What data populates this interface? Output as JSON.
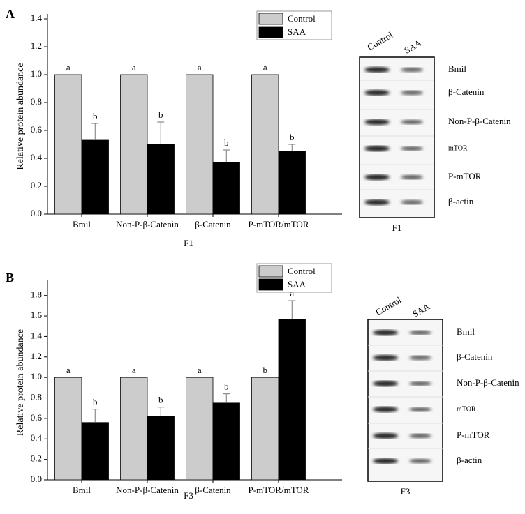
{
  "chart_data": [
    {
      "type": "bar",
      "xlabel": "F1",
      "ylabel": "Relative protein abundance",
      "categories": [
        "Bmil",
        "Non-P-β-Catenin",
        "β-Catenin",
        "P-mTOR/mTOR"
      ],
      "series": [
        {
          "name": "Control",
          "color": "#cccccc",
          "values": [
            1,
            1,
            1,
            1
          ],
          "significance": [
            "a",
            "a",
            "a",
            "a"
          ]
        },
        {
          "name": "SAA",
          "color": "#000000",
          "values": [
            0.53,
            0.5,
            0.37,
            0.45
          ],
          "errors": [
            0.12,
            0.16,
            0.09,
            0.05
          ],
          "significance": [
            "b",
            "b",
            "b",
            "b"
          ]
        }
      ],
      "ylim": [
        0,
        1.4
      ],
      "yticks": [
        {
          "value": 0,
          "label": "0.0"
        },
        0.2,
        0.4,
        0.6,
        0.8,
        {
          "value": 1,
          "label": "1.0"
        },
        1.2,
        1.4
      ]
    },
    {
      "type": "bar",
      "xlabel": "F3",
      "ylabel": "Relative protein abundance",
      "categories": [
        "Bmil",
        "Non-P-β-Catenin",
        "β-Catenin",
        "P-mTOR/mTOR"
      ],
      "series": [
        {
          "name": "Control",
          "color": "#cccccc",
          "values": [
            1,
            1,
            1,
            1
          ],
          "significance": [
            "a",
            "a",
            "a",
            "b"
          ]
        },
        {
          "name": "SAA",
          "color": "#000000",
          "values": [
            0.56,
            0.62,
            0.75,
            1.57
          ],
          "errors": [
            0.13,
            0.09,
            0.09,
            0.18
          ],
          "significance": [
            "b",
            "b",
            "b",
            "a"
          ]
        }
      ],
      "ylim": [
        0,
        1.9
      ],
      "yticks": [
        {
          "value": 0,
          "label": "0.0"
        },
        0.2,
        0.4,
        0.6,
        0.8,
        {
          "value": 1,
          "label": "1.0"
        },
        1.2,
        1.4,
        1.6,
        1.8
      ]
    }
  ],
  "panels": [
    {
      "letter": "A",
      "blot": {
        "columns": [
          "Control",
          "SAA"
        ],
        "rows": [
          "Bmil",
          "β-Catenin",
          "Non-P-β-Catenin",
          "mTOR",
          "P-mTOR",
          "β-actin"
        ],
        "caption": "F1"
      }
    },
    {
      "letter": "B",
      "blot": {
        "columns": [
          "Control",
          "SAA"
        ],
        "rows": [
          "Bmil",
          "β-Catenin",
          "Non-P-β-Catenin",
          "mTOR",
          "P-mTOR",
          "β-actin"
        ],
        "caption": "F3"
      }
    }
  ]
}
